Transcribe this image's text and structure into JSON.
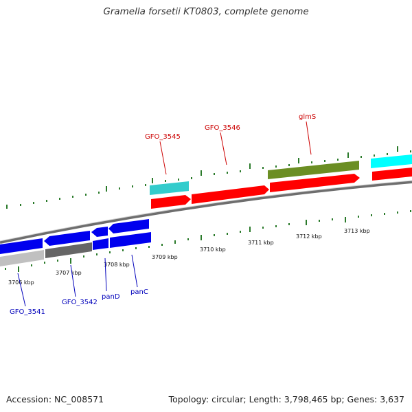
{
  "title": "Gramella forsetii KT0803, complete genome",
  "footer": {
    "accession": "Accession: NC_008571",
    "topology": "Topology: circular; Length: 3,798,465 bp; Genes: 3,637"
  },
  "scale_labels": [
    "3706 kbp",
    "3707 kbp",
    "3708 kbp",
    "3709 kbp",
    "3710 kbp",
    "3711 kbp",
    "3712 kbp",
    "3713 kbp"
  ],
  "gene_labels_top": [
    "GFO_3545",
    "GFO_3546",
    "glmS"
  ],
  "gene_labels_bottom": [
    "GFO_3541",
    "GFO_3542",
    "panD",
    "panC"
  ],
  "colors": {
    "forward": "#ff0000",
    "reverse": "#0000ee",
    "tick": "#2a7a2a",
    "backbone": "#888888",
    "cyan": "#33cccc",
    "olive": "#6b8e23",
    "grey_dark": "#666666",
    "grey_light": "#c0c0c0"
  }
}
